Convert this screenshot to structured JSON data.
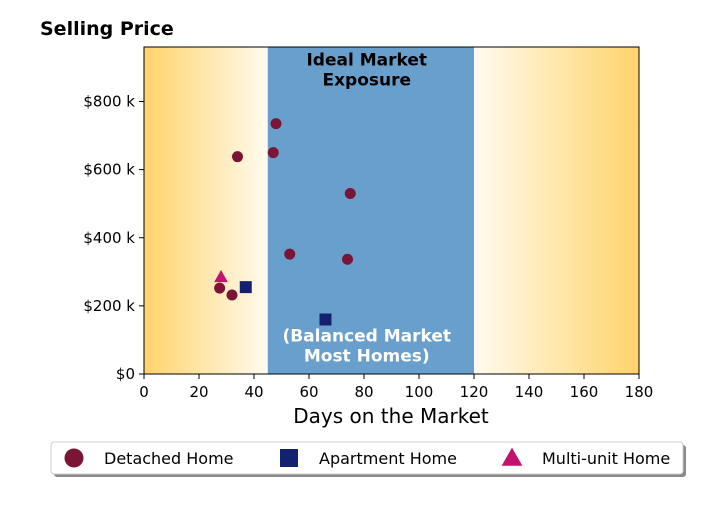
{
  "chart_data": {
    "type": "scatter",
    "ylabel": "Selling Price",
    "xlabel": "Days on the Market",
    "xlim": [
      0,
      180
    ],
    "ylim": [
      0,
      960000
    ],
    "x_ticks": [
      0,
      20,
      40,
      60,
      80,
      100,
      120,
      140,
      160,
      180
    ],
    "y_ticks": [
      {
        "value": 0,
        "label": "$0"
      },
      {
        "value": 200000,
        "label": "$200 k"
      },
      {
        "value": 400000,
        "label": "$400 k"
      },
      {
        "value": 600000,
        "label": "$600 k"
      },
      {
        "value": 800000,
        "label": "$800 k"
      }
    ],
    "grid": false,
    "zones": [
      {
        "x_range": [
          0,
          45
        ],
        "fill": "gradient",
        "color": "#ffd36b"
      },
      {
        "x_range": [
          45,
          120
        ],
        "fill": "solid",
        "color": "#689fcd"
      },
      {
        "x_range": [
          120,
          180
        ],
        "fill": "gradient",
        "color": "#ffd36b"
      }
    ],
    "annotations": [
      {
        "lines": [
          "Ideal Market",
          "Exposure"
        ],
        "x": 81,
        "y": 905000,
        "color": "#000000"
      },
      {
        "lines": [
          "(Balanced Market",
          "Most Homes)"
        ],
        "x": 81,
        "y": 95000,
        "color": "#ffffff"
      }
    ],
    "legend_position": "bottom-center",
    "series": [
      {
        "name": "Detached Home",
        "marker": "circle",
        "color": "#7b1535",
        "points": [
          {
            "x": 27.5,
            "y": 252000
          },
          {
            "x": 32,
            "y": 232000
          },
          {
            "x": 34,
            "y": 638000
          },
          {
            "x": 47,
            "y": 650000
          },
          {
            "x": 48,
            "y": 735000
          },
          {
            "x": 53,
            "y": 352000
          },
          {
            "x": 74,
            "y": 337000
          },
          {
            "x": 75,
            "y": 530000
          }
        ]
      },
      {
        "name": "Apartment Home",
        "marker": "square",
        "color": "#14216e",
        "points": [
          {
            "x": 37,
            "y": 255000
          },
          {
            "x": 66,
            "y": 160000
          }
        ]
      },
      {
        "name": "Multi-unit Home",
        "marker": "triangle",
        "color": "#c2136e",
        "points": [
          {
            "x": 28,
            "y": 285000
          }
        ]
      }
    ]
  }
}
